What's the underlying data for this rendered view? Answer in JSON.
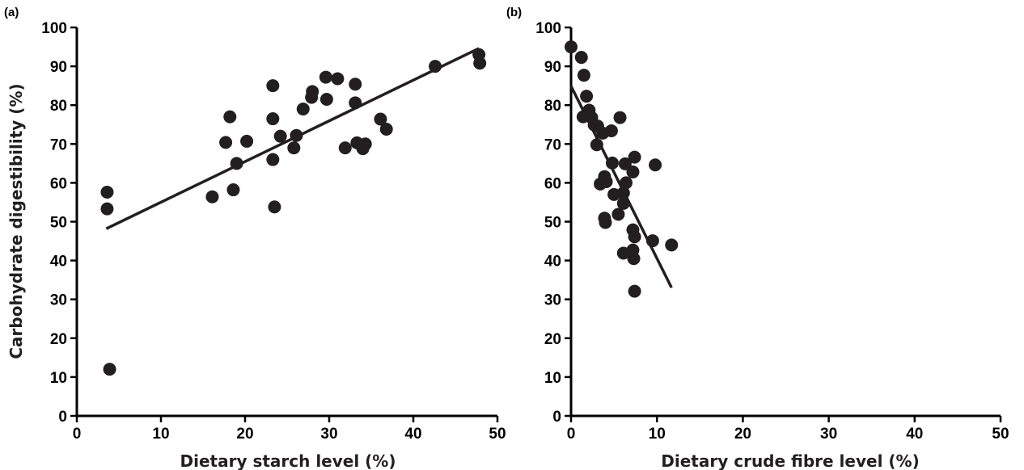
{
  "chart_data": [
    {
      "type": "scatter",
      "panel_label": "(a)",
      "xlabel": "Dietary starch level (%)",
      "ylabel": "Carbohydrate digestibility (%)",
      "xlim": [
        0,
        50
      ],
      "ylim": [
        0,
        100
      ],
      "x_ticks": [
        "0",
        "10",
        "20",
        "30",
        "40",
        "50"
      ],
      "y_ticks": [
        "0",
        "10",
        "20",
        "30",
        "40",
        "50",
        "60",
        "70",
        "80",
        "90",
        "100"
      ],
      "grid": false,
      "series": [
        {
          "points": [
            [
              3.6,
              57.6
            ],
            [
              3.6,
              53.3
            ],
            [
              3.9,
              12.0
            ],
            [
              16.1,
              56.4
            ],
            [
              17.7,
              70.4
            ],
            [
              18.2,
              77.0
            ],
            [
              18.6,
              58.2
            ],
            [
              19.0,
              65.0
            ],
            [
              20.2,
              70.7
            ],
            [
              23.3,
              85.0
            ],
            [
              23.3,
              76.5
            ],
            [
              23.3,
              66.0
            ],
            [
              23.5,
              53.8
            ],
            [
              24.2,
              72.0
            ],
            [
              25.8,
              69.0
            ],
            [
              26.1,
              72.2
            ],
            [
              26.9,
              79.0
            ],
            [
              27.9,
              82.0
            ],
            [
              28.0,
              83.5
            ],
            [
              29.6,
              87.2
            ],
            [
              29.7,
              81.5
            ],
            [
              31.0,
              86.8
            ],
            [
              31.9,
              69.0
            ],
            [
              33.1,
              85.4
            ],
            [
              33.1,
              80.6
            ],
            [
              33.3,
              70.3
            ],
            [
              34.0,
              68.8
            ],
            [
              34.3,
              70.0
            ],
            [
              36.1,
              76.4
            ],
            [
              36.8,
              73.8
            ],
            [
              42.6,
              90.0
            ],
            [
              47.8,
              93.0
            ],
            [
              47.9,
              90.8
            ]
          ]
        }
      ],
      "trendline": {
        "x": [
          3.5,
          47.8
        ],
        "y": [
          48.2,
          94.6
        ]
      }
    },
    {
      "type": "scatter",
      "panel_label": "(b)",
      "xlabel": "Dietary crude fibre level (%)",
      "ylabel": "",
      "xlim": [
        0,
        50
      ],
      "ylim": [
        0,
        100
      ],
      "x_ticks": [
        "0",
        "10",
        "20",
        "30",
        "40",
        "50"
      ],
      "y_ticks": [
        "0",
        "10",
        "20",
        "30",
        "40",
        "50",
        "60",
        "70",
        "80",
        "90",
        "100"
      ],
      "grid": false,
      "series": [
        {
          "points": [
            [
              0.0,
              95.0
            ],
            [
              1.2,
              92.3
            ],
            [
              1.5,
              87.7
            ],
            [
              1.4,
              77.0
            ],
            [
              1.8,
              82.3
            ],
            [
              2.1,
              78.7
            ],
            [
              2.4,
              76.8
            ],
            [
              2.7,
              74.9
            ],
            [
              3.1,
              74.6
            ],
            [
              3.0,
              69.8
            ],
            [
              3.7,
              72.8
            ],
            [
              3.4,
              59.7
            ],
            [
              3.9,
              61.6
            ],
            [
              4.1,
              60.3
            ],
            [
              3.9,
              50.9
            ],
            [
              4.0,
              49.8
            ],
            [
              4.7,
              73.4
            ],
            [
              4.8,
              65.1
            ],
            [
              5.0,
              57.0
            ],
            [
              5.5,
              51.9
            ],
            [
              5.7,
              76.8
            ],
            [
              6.1,
              54.7
            ],
            [
              6.1,
              57.4
            ],
            [
              6.4,
              60.0
            ],
            [
              6.3,
              64.9
            ],
            [
              6.1,
              41.9
            ],
            [
              7.2,
              62.8
            ],
            [
              7.4,
              66.6
            ],
            [
              7.2,
              47.9
            ],
            [
              7.4,
              46.1
            ],
            [
              7.2,
              42.7
            ],
            [
              7.3,
              40.5
            ],
            [
              7.4,
              32.1
            ],
            [
              9.5,
              45.1
            ],
            [
              9.8,
              64.6
            ],
            [
              11.7,
              44.0
            ]
          ]
        }
      ],
      "trendline": {
        "x": [
          0.0,
          11.7
        ],
        "y": [
          84.9,
          33.0
        ]
      }
    }
  ]
}
